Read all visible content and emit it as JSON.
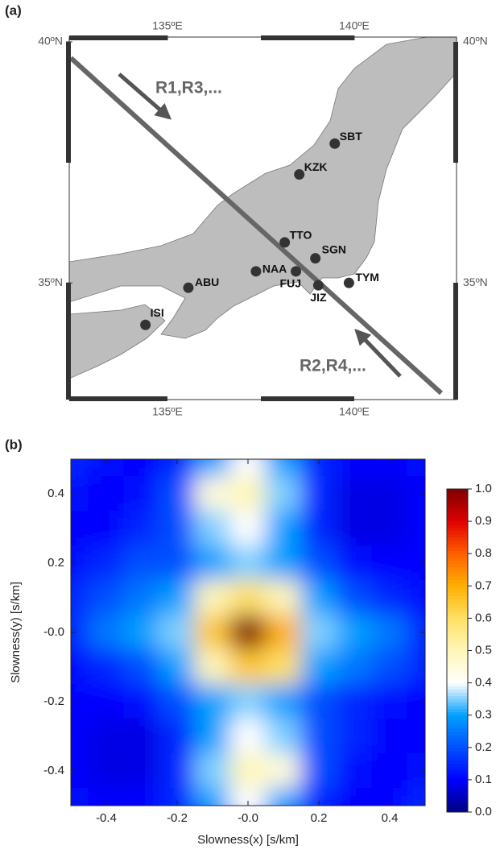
{
  "chart_data": [
    {
      "type": "map",
      "panel_label": "(a)",
      "xlim": [
        132.37,
        142.74
      ],
      "ylim": [
        32.58,
        40.1
      ],
      "xticks": [
        {
          "value": 135,
          "label": "135ºE"
        },
        {
          "value": 140,
          "label": "140ºE"
        }
      ],
      "yticks": [
        {
          "value": 35,
          "label": "35ºN"
        },
        {
          "value": 40,
          "label": "40ºN"
        }
      ],
      "stations": [
        {
          "name": "SBT",
          "lon": 139.48,
          "lat": 37.89
        },
        {
          "name": "KZK",
          "lon": 138.53,
          "lat": 37.25
        },
        {
          "name": "TTO",
          "lon": 138.14,
          "lat": 35.84
        },
        {
          "name": "SGN",
          "lon": 138.96,
          "lat": 35.51
        },
        {
          "name": "NAA",
          "lon": 137.37,
          "lat": 35.24
        },
        {
          "name": "FUJ",
          "lon": 138.44,
          "lat": 35.24
        },
        {
          "name": "JIZ",
          "lon": 139.04,
          "lat": 34.95
        },
        {
          "name": "TYM",
          "lon": 139.86,
          "lat": 35.0
        },
        {
          "name": "ABU",
          "lon": 135.56,
          "lat": 34.9
        },
        {
          "name": "ISI",
          "lon": 134.41,
          "lat": 34.13
        }
      ],
      "annotations": [
        "R1,R3,...",
        "R2,R4,..."
      ]
    },
    {
      "type": "heatmap",
      "panel_label": "(b)",
      "xlabel": "Slowness(x) [s/km]",
      "ylabel": "Slowness(y) [s/km]",
      "x": [
        -0.5,
        -0.4,
        -0.3,
        -0.2,
        -0.1,
        0,
        0.1,
        0.2,
        0.3,
        0.4,
        0.5
      ],
      "y": [
        0.5,
        0.4,
        0.3,
        0.2,
        0.1,
        0,
        -0.1,
        -0.2,
        -0.3,
        -0.4,
        -0.5
      ],
      "values": [
        [
          0.15,
          0.12,
          0.1,
          0.15,
          0.3,
          0.4,
          0.3,
          0.15,
          0.1,
          0.1,
          0.12
        ],
        [
          0.12,
          0.1,
          0.12,
          0.2,
          0.45,
          0.5,
          0.35,
          0.15,
          0.08,
          0.08,
          0.1
        ],
        [
          0.1,
          0.1,
          0.15,
          0.2,
          0.35,
          0.4,
          0.3,
          0.15,
          0.08,
          0.08,
          0.1
        ],
        [
          0.12,
          0.15,
          0.2,
          0.2,
          0.3,
          0.35,
          0.3,
          0.2,
          0.12,
          0.1,
          0.1
        ],
        [
          0.15,
          0.2,
          0.25,
          0.3,
          0.5,
          0.6,
          0.5,
          0.3,
          0.2,
          0.15,
          0.12
        ],
        [
          0.15,
          0.25,
          0.3,
          0.35,
          0.65,
          1.0,
          0.7,
          0.35,
          0.3,
          0.25,
          0.15
        ],
        [
          0.12,
          0.15,
          0.2,
          0.3,
          0.5,
          0.65,
          0.6,
          0.3,
          0.25,
          0.2,
          0.15
        ],
        [
          0.1,
          0.1,
          0.12,
          0.2,
          0.3,
          0.35,
          0.3,
          0.2,
          0.15,
          0.12,
          0.1
        ],
        [
          0.1,
          0.08,
          0.08,
          0.15,
          0.3,
          0.4,
          0.35,
          0.2,
          0.15,
          0.1,
          0.1
        ],
        [
          0.1,
          0.08,
          0.08,
          0.15,
          0.35,
          0.5,
          0.45,
          0.2,
          0.12,
          0.1,
          0.12
        ],
        [
          0.12,
          0.1,
          0.1,
          0.15,
          0.3,
          0.4,
          0.3,
          0.15,
          0.1,
          0.1,
          0.15
        ]
      ],
      "xlim": [
        -0.5,
        0.5
      ],
      "ylim": [
        -0.5,
        0.5
      ],
      "xticks": [
        -0.4,
        -0.2,
        {
          "value": 0,
          "label": "-0.0"
        },
        0.2,
        0.4
      ],
      "yticks": [
        0.4,
        0.2,
        {
          "value": 0,
          "label": "-0.0"
        },
        -0.2,
        -0.4
      ],
      "clim": [
        0,
        1
      ],
      "colorbar_ticks": [
        {
          "value": 0,
          "label": "0.0"
        },
        0.1,
        0.2,
        0.3,
        0.4,
        0.5,
        0.6,
        0.7,
        0.8,
        0.9,
        {
          "value": 1,
          "label": "1.0"
        }
      ],
      "colormap": [
        "#00007f",
        "#0000ff",
        "#0050ff",
        "#00a0ff",
        "#ffffff",
        "#fff6b8",
        "#ffe066",
        "#ffb000",
        "#ff6000",
        "#e00000",
        "#7f0000"
      ]
    }
  ]
}
